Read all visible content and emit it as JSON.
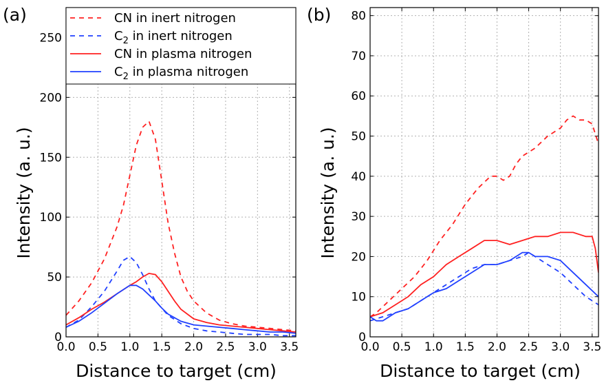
{
  "chart_data": [
    {
      "panel_label": "(a)",
      "type": "line",
      "xlabel": "Distance to target (cm)",
      "ylabel": "Intensity (a. u.)",
      "xlim": [
        0.0,
        3.6
      ],
      "ylim": [
        0,
        275
      ],
      "xticks": [
        "0.0",
        "0.5",
        "1.0",
        "1.5",
        "2.0",
        "2.5",
        "3.0",
        "3.5"
      ],
      "yticks": [
        "0",
        "50",
        "100",
        "150",
        "200",
        "250"
      ],
      "grid": true,
      "legend_position": "top-left",
      "series": [
        {
          "name": "CN in inert nitrogen",
          "label_main": "CN in inert nitrogen",
          "label_sub": "",
          "label_tail": "",
          "color": "#ff2020",
          "dash": "dashed",
          "x": [
            0.0,
            0.2,
            0.4,
            0.6,
            0.8,
            0.9,
            1.0,
            1.1,
            1.2,
            1.3,
            1.4,
            1.5,
            1.6,
            1.7,
            1.8,
            1.9,
            2.0,
            2.2,
            2.4,
            2.6,
            2.8,
            3.0,
            3.2,
            3.4,
            3.6
          ],
          "y": [
            18,
            30,
            45,
            65,
            92,
            110,
            135,
            160,
            175,
            180,
            165,
            130,
            95,
            70,
            50,
            38,
            30,
            20,
            14,
            11,
            9,
            8,
            7,
            6,
            5
          ]
        },
        {
          "name": "C2 in inert nitrogen",
          "label_main": "C",
          "label_sub": "2",
          "label_tail": " in inert nitrogen",
          "color": "#2040ff",
          "dash": "dashed",
          "x": [
            0.0,
            0.2,
            0.4,
            0.6,
            0.8,
            0.9,
            1.0,
            1.1,
            1.2,
            1.3,
            1.4,
            1.6,
            1.8,
            2.0,
            2.2,
            2.4,
            2.6,
            2.8,
            3.0,
            3.2,
            3.4,
            3.6
          ],
          "y": [
            8,
            14,
            25,
            38,
            55,
            64,
            67,
            62,
            52,
            40,
            30,
            18,
            11,
            7,
            5,
            4,
            3,
            2,
            2,
            2,
            1,
            1
          ]
        },
        {
          "name": "CN in plasma nitrogen",
          "label_main": "CN in plasma nitrogen",
          "label_sub": "",
          "label_tail": "",
          "color": "#ff2020",
          "dash": "solid",
          "x": [
            0.0,
            0.2,
            0.4,
            0.6,
            0.8,
            1.0,
            1.1,
            1.2,
            1.3,
            1.4,
            1.5,
            1.6,
            1.7,
            1.8,
            2.0,
            2.2,
            2.4,
            2.6,
            2.8,
            3.0,
            3.2,
            3.4,
            3.6
          ],
          "y": [
            10,
            16,
            23,
            29,
            36,
            43,
            46,
            50,
            53,
            52,
            46,
            38,
            30,
            23,
            15,
            12,
            10,
            9,
            8,
            7,
            6,
            5,
            4
          ]
        },
        {
          "name": "C2 in plasma nitrogen",
          "label_main": "C",
          "label_sub": "2",
          "label_tail": " in plasma nitrogen",
          "color": "#2040ff",
          "dash": "solid",
          "x": [
            0.0,
            0.2,
            0.4,
            0.6,
            0.8,
            1.0,
            1.1,
            1.2,
            1.3,
            1.4,
            1.5,
            1.6,
            1.8,
            2.0,
            2.2,
            2.4,
            2.6,
            2.8,
            3.0,
            3.2,
            3.4,
            3.6
          ],
          "y": [
            8,
            13,
            20,
            28,
            36,
            43,
            43,
            40,
            35,
            30,
            24,
            19,
            13,
            10,
            9,
            8,
            7,
            6,
            5,
            4,
            4,
            3
          ]
        }
      ]
    },
    {
      "panel_label": "(b)",
      "type": "line",
      "xlabel": "Distance to target (cm)",
      "ylabel": "Intensity (a. u.)",
      "xlim": [
        0.0,
        3.6
      ],
      "ylim": [
        0,
        82
      ],
      "xticks": [
        "0.0",
        "0.5",
        "1.0",
        "1.5",
        "2.0",
        "2.5",
        "3.0",
        "3.5"
      ],
      "yticks": [
        "0",
        "10",
        "20",
        "30",
        "40",
        "50",
        "60",
        "70",
        "80"
      ],
      "grid": true,
      "series": [
        {
          "name": "CN in inert nitrogen",
          "color": "#ff2020",
          "dash": "dashed",
          "x": [
            0.0,
            0.1,
            0.3,
            0.5,
            0.7,
            0.9,
            1.1,
            1.3,
            1.5,
            1.7,
            1.9,
            2.0,
            2.1,
            2.2,
            2.3,
            2.4,
            2.6,
            2.8,
            3.0,
            3.1,
            3.2,
            3.3,
            3.4,
            3.5,
            3.6
          ],
          "y": [
            5,
            6,
            9,
            12,
            15,
            19,
            24,
            28,
            33,
            37,
            40,
            40,
            39,
            40,
            43,
            45,
            47,
            50,
            52,
            54,
            55,
            54,
            54,
            53,
            48
          ]
        },
        {
          "name": "C2 in inert nitrogen",
          "color": "#2040ff",
          "dash": "dashed",
          "x": [
            0.0,
            0.2,
            0.4,
            0.6,
            0.8,
            1.0,
            1.2,
            1.4,
            1.6,
            1.8,
            2.0,
            2.2,
            2.4,
            2.5,
            2.6,
            2.8,
            3.0,
            3.2,
            3.4,
            3.6
          ],
          "y": [
            4,
            5,
            6,
            7,
            9,
            11,
            13,
            15,
            17,
            18,
            18,
            19,
            20,
            21,
            20,
            18,
            16,
            13,
            10,
            8
          ]
        },
        {
          "name": "CN in plasma nitrogen",
          "color": "#ff2020",
          "dash": "solid",
          "x": [
            0.0,
            0.2,
            0.4,
            0.6,
            0.8,
            1.0,
            1.2,
            1.4,
            1.6,
            1.8,
            2.0,
            2.2,
            2.4,
            2.6,
            2.8,
            3.0,
            3.2,
            3.4,
            3.5,
            3.55,
            3.6
          ],
          "y": [
            5,
            6,
            8,
            10,
            13,
            15,
            18,
            20,
            22,
            24,
            24,
            23,
            24,
            25,
            25,
            26,
            26,
            25,
            25,
            22,
            16
          ]
        },
        {
          "name": "C2 in plasma nitrogen",
          "color": "#2040ff",
          "dash": "solid",
          "x": [
            0.0,
            0.1,
            0.2,
            0.4,
            0.6,
            0.8,
            1.0,
            1.2,
            1.4,
            1.6,
            1.8,
            2.0,
            2.2,
            2.4,
            2.5,
            2.6,
            2.8,
            3.0,
            3.2,
            3.4,
            3.6
          ],
          "y": [
            5,
            4,
            4,
            6,
            7,
            9,
            11,
            12,
            14,
            16,
            18,
            18,
            19,
            21,
            21,
            20,
            20,
            19,
            16,
            13,
            10
          ]
        }
      ]
    }
  ]
}
